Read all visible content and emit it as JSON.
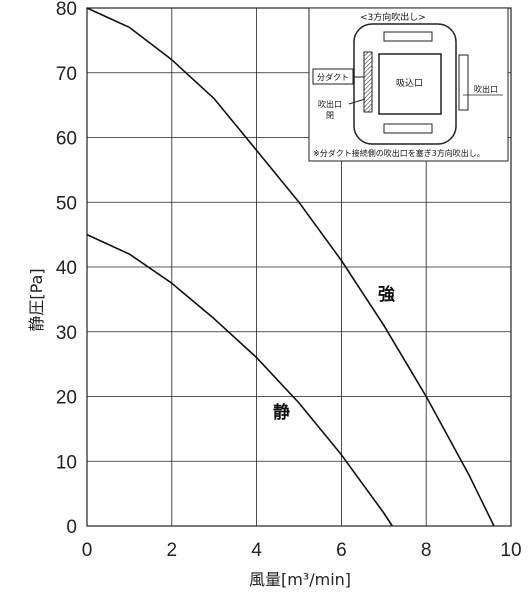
{
  "chart_data": {
    "type": "line",
    "xlabel": "風量[m³/min]",
    "ylabel": "静圧[Pa]",
    "xlim": [
      0,
      10
    ],
    "ylim": [
      0,
      80
    ],
    "x_ticks": [
      "0",
      "2",
      "4",
      "6",
      "8",
      "10"
    ],
    "y_ticks": [
      "0",
      "10",
      "20",
      "30",
      "40",
      "50",
      "60",
      "70",
      "80"
    ],
    "grid": true,
    "series": [
      {
        "name": "強",
        "x": [
          0,
          1,
          2,
          3,
          4,
          5,
          6,
          7,
          8,
          9,
          9.6
        ],
        "values": [
          80,
          77,
          72,
          66,
          58,
          50,
          41,
          31,
          20,
          8,
          0
        ]
      },
      {
        "name": "静",
        "x": [
          0,
          1,
          2,
          3,
          4,
          5,
          6,
          7,
          7.2
        ],
        "values": [
          45,
          42,
          37.5,
          32,
          26,
          19,
          11,
          2,
          0
        ]
      }
    ],
    "annotations": [
      "強",
      "静"
    ]
  },
  "inset": {
    "title": "<3方向吹出し>",
    "left_label": "分ダクト",
    "center_label": "吸込口",
    "right_label": "吹出口",
    "closed_label_line1": "吹出口",
    "closed_label_line2": "閉",
    "note": "※分ダクト接続側の吹出口を塞ぎ3方向吹出し。"
  }
}
